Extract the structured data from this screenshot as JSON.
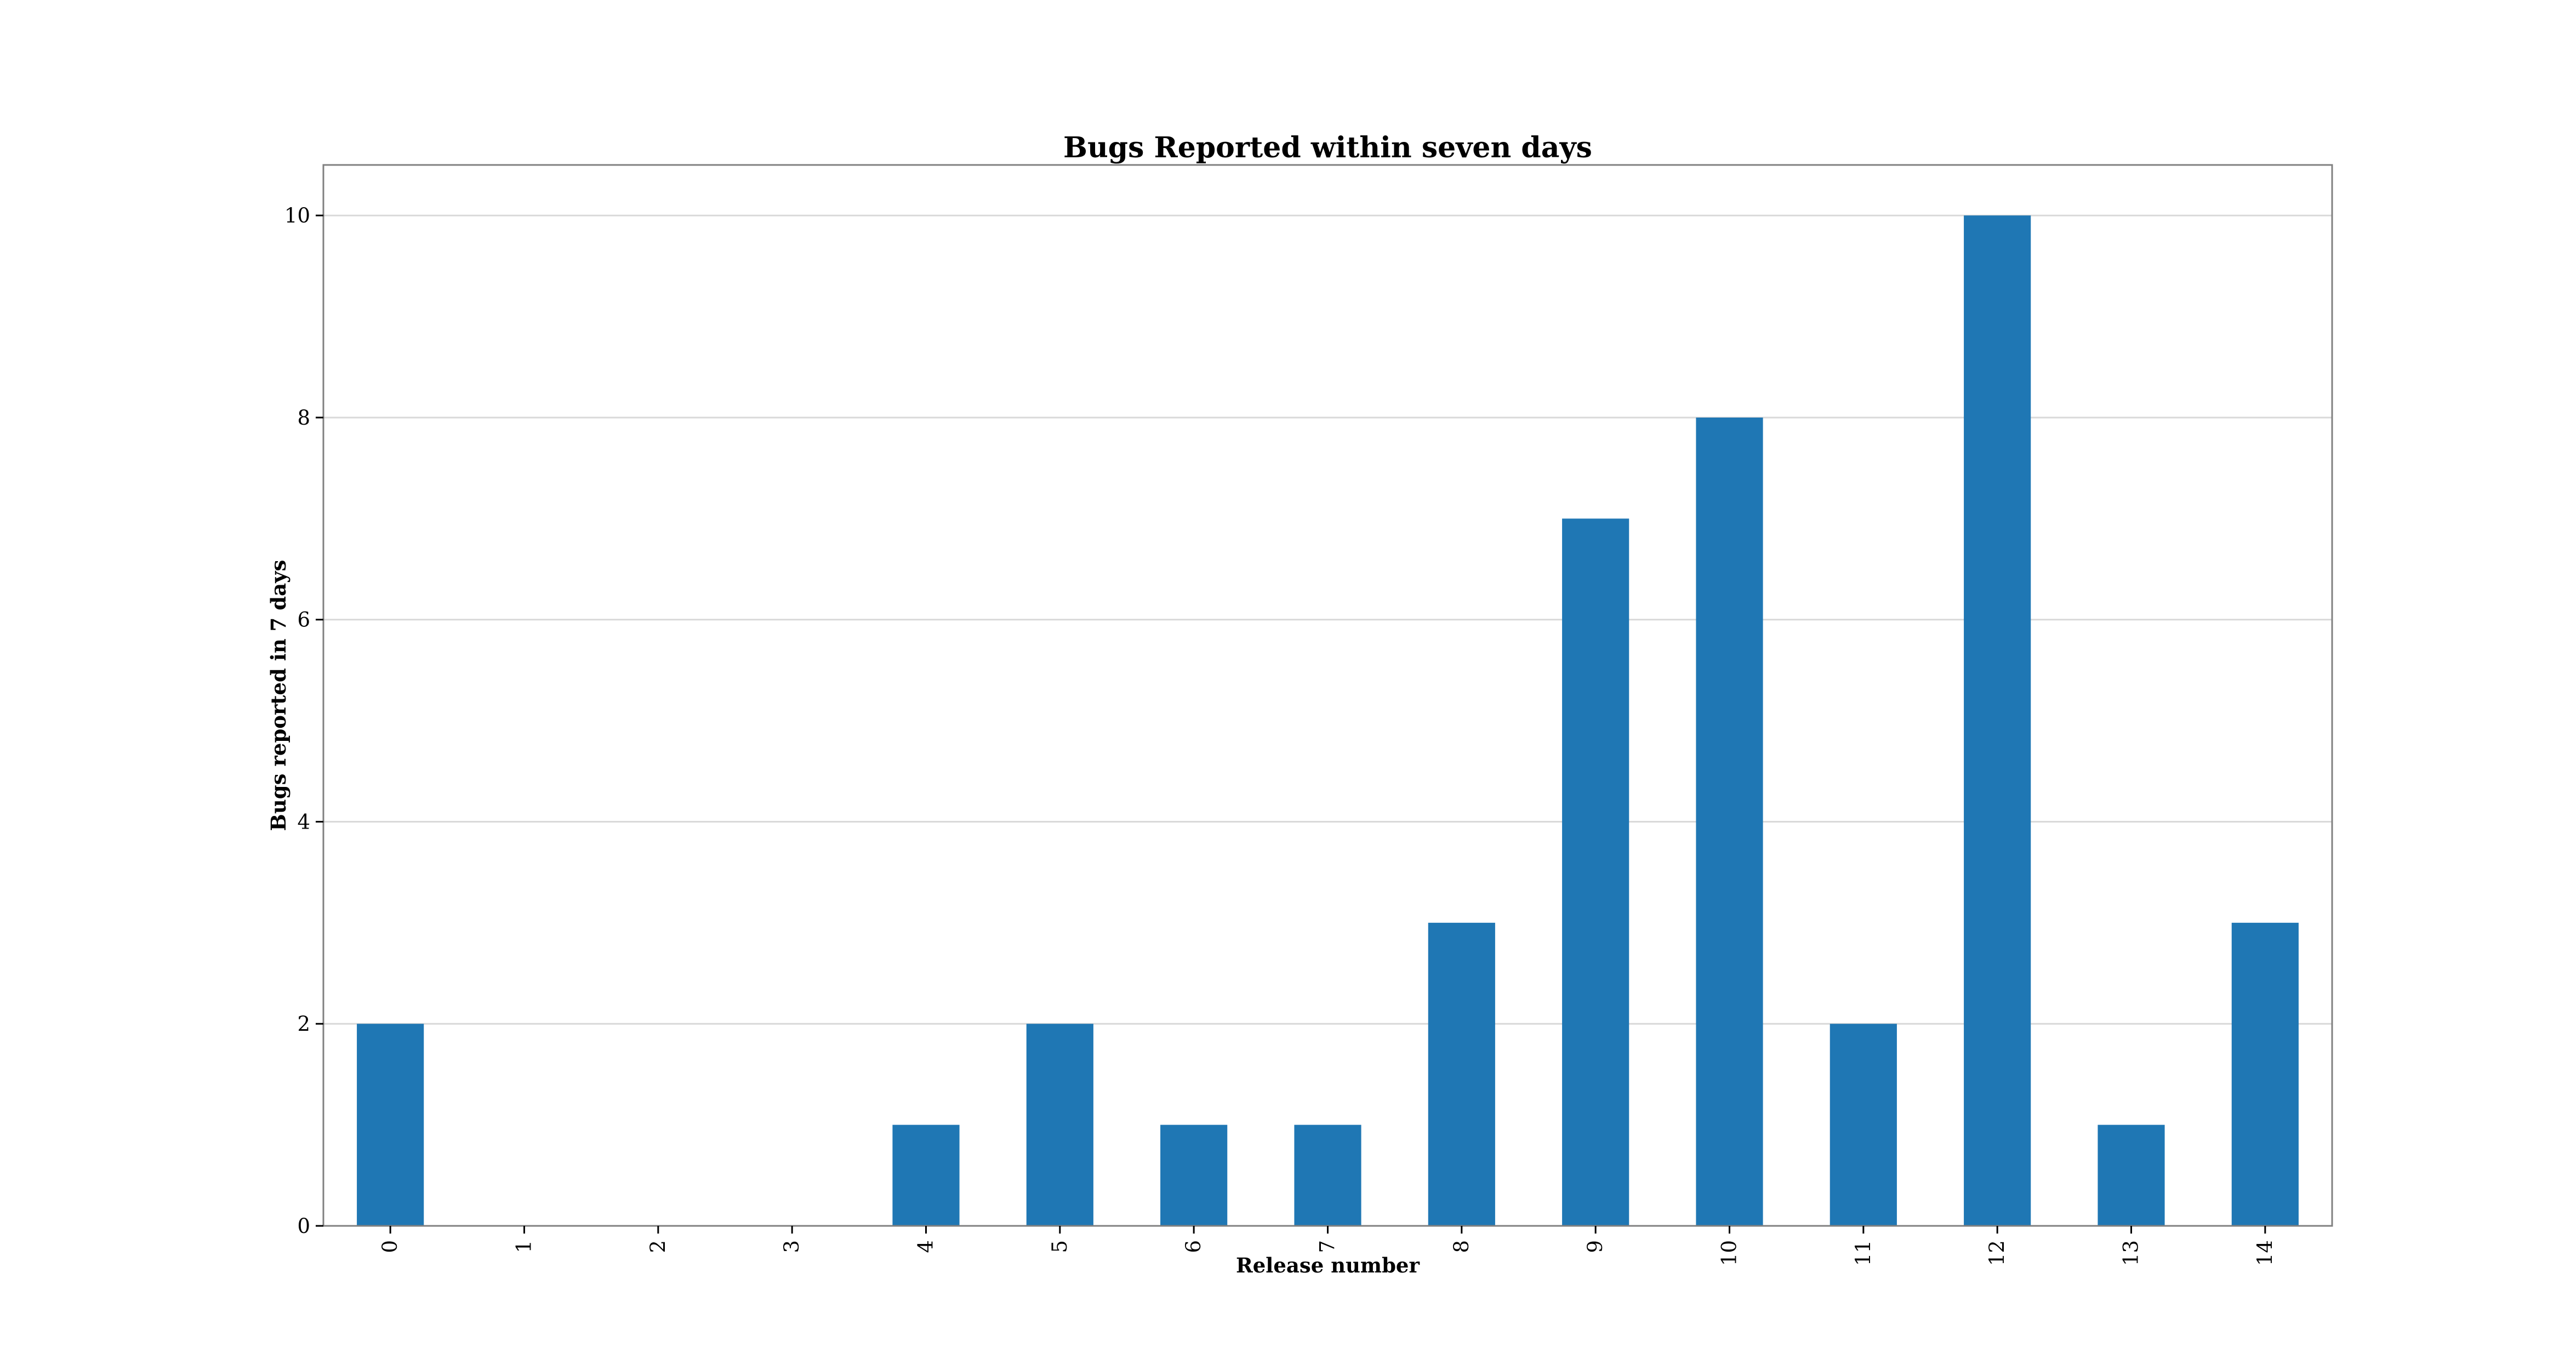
{
  "chart_data": {
    "type": "bar",
    "title": "Bugs Reported within seven days",
    "xlabel": "Release number",
    "ylabel": "Bugs reported in 7 days",
    "categories": [
      "0",
      "1",
      "2",
      "3",
      "4",
      "5",
      "6",
      "7",
      "8",
      "9",
      "10",
      "11",
      "12",
      "13",
      "14"
    ],
    "values": [
      2,
      0,
      0,
      0,
      1,
      2,
      1,
      1,
      3,
      7,
      8,
      2,
      10,
      1,
      3
    ],
    "ylim": [
      0,
      10.5
    ],
    "yticks": [
      "0",
      "2",
      "4",
      "6",
      "8",
      "10"
    ],
    "grid": "y",
    "legend": "none",
    "colors": {
      "bar": "#1f77b4",
      "grid": "#d9d9d9",
      "frame": "#808080",
      "text": "#000000"
    }
  }
}
